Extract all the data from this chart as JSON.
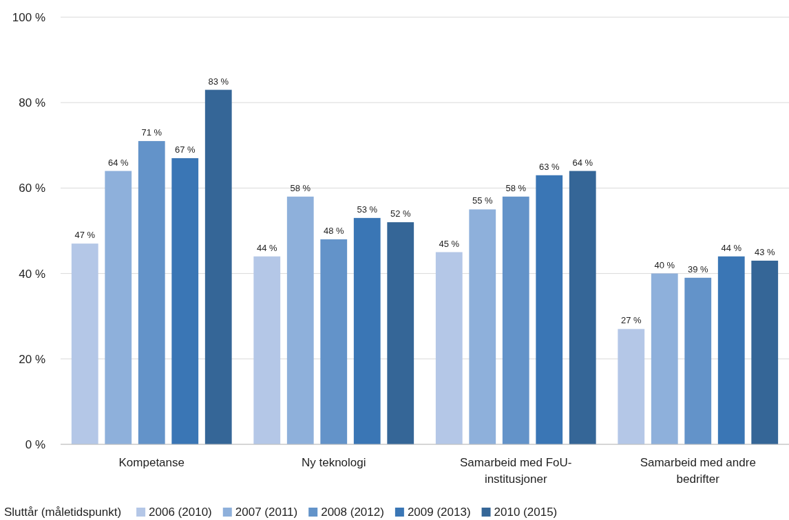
{
  "chart_data": {
    "type": "bar",
    "categories": [
      "Kompetanse",
      "Ny teknologi",
      "Samarbeid med FoU-institusjoner",
      "Samarbeid med andre bedrifter"
    ],
    "series": [
      {
        "name": "2006 (2010)",
        "color": "#b4c7e7",
        "values": [
          47,
          44,
          45,
          27
        ],
        "value_labels": [
          "47 %",
          "44 %",
          "45 %",
          "27 %"
        ]
      },
      {
        "name": "2007 (2011)",
        "color": "#8eb0db",
        "values": [
          64,
          58,
          55,
          40
        ],
        "value_labels": [
          "64 %",
          "58 %",
          "55 %",
          "40 %"
        ]
      },
      {
        "name": "2008 (2012)",
        "color": "#6393c9",
        "values": [
          71,
          48,
          58,
          39
        ],
        "value_labels": [
          "71 %",
          "48 %",
          "58 %",
          "39 %"
        ]
      },
      {
        "name": "2009 (2013)",
        "color": "#3a76b5",
        "values": [
          67,
          53,
          63,
          44
        ],
        "value_labels": [
          "67 %",
          "53 %",
          "63 %",
          "44 %"
        ]
      },
      {
        "name": "2010 (2015)",
        "color": "#356697",
        "values": [
          83,
          52,
          64,
          43
        ],
        "value_labels": [
          "83 %",
          "52 %",
          "64 %",
          "43 %"
        ]
      }
    ],
    "ylim": [
      0,
      100
    ],
    "yticks": [
      {
        "value": 0,
        "label": "0 %"
      },
      {
        "value": 20,
        "label": "20 %"
      },
      {
        "value": 40,
        "label": "40 %"
      },
      {
        "value": 60,
        "label": "60 %"
      },
      {
        "value": 80,
        "label": "80 %"
      },
      {
        "value": 100,
        "label": "100 %"
      }
    ],
    "grid": true,
    "legend": "bottom",
    "legend_title": "Sluttår (måletidspunkt)"
  }
}
